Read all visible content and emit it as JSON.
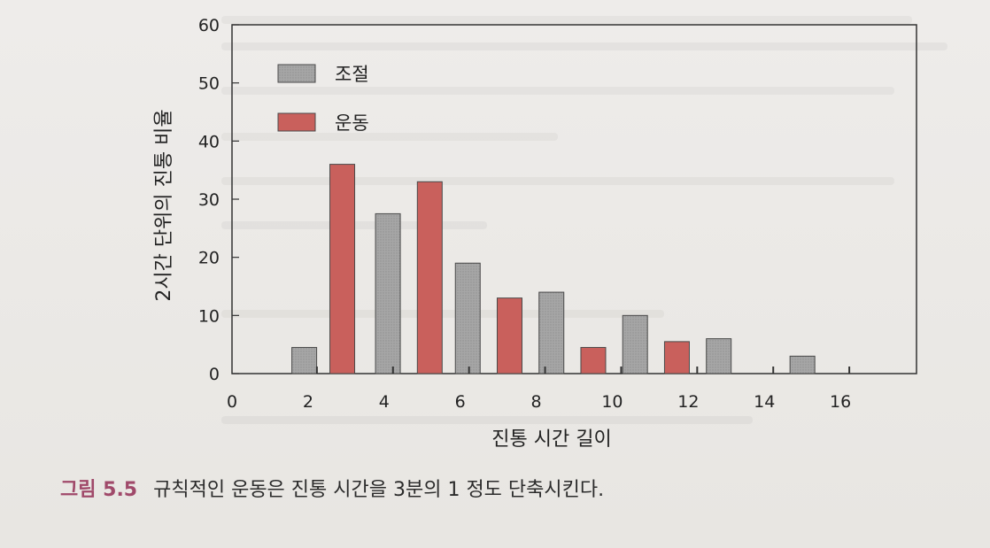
{
  "chart_data": {
    "type": "bar",
    "xlabel": "진통 시간 길이",
    "ylabel": "2시간 단위의 진통 비율",
    "xlim": [
      0,
      18
    ],
    "ylim": [
      0,
      60
    ],
    "x_ticks": [
      0,
      2,
      4,
      6,
      8,
      10,
      12,
      14,
      16
    ],
    "y_ticks": [
      0,
      10,
      20,
      30,
      40,
      50,
      60
    ],
    "legend_position": "top-left",
    "grid": false,
    "series": [
      {
        "name": "조절",
        "color": "#a9a9a9",
        "x": [
          1.9,
          4.1,
          6.2,
          8.4,
          10.6,
          12.8,
          15.0
        ],
        "values": [
          4.5,
          27.5,
          19,
          14,
          10,
          6,
          3
        ]
      },
      {
        "name": "운동",
        "color": "#c9605c",
        "x": [
          2.9,
          5.2,
          7.3,
          9.5,
          11.7
        ],
        "values": [
          36,
          33,
          13,
          4.5,
          5.5
        ]
      }
    ]
  },
  "caption": {
    "label": "그림 5.5",
    "text": "규칙적인 운동은 진통 시간을 3분의 1 정도 단축시킨다."
  }
}
